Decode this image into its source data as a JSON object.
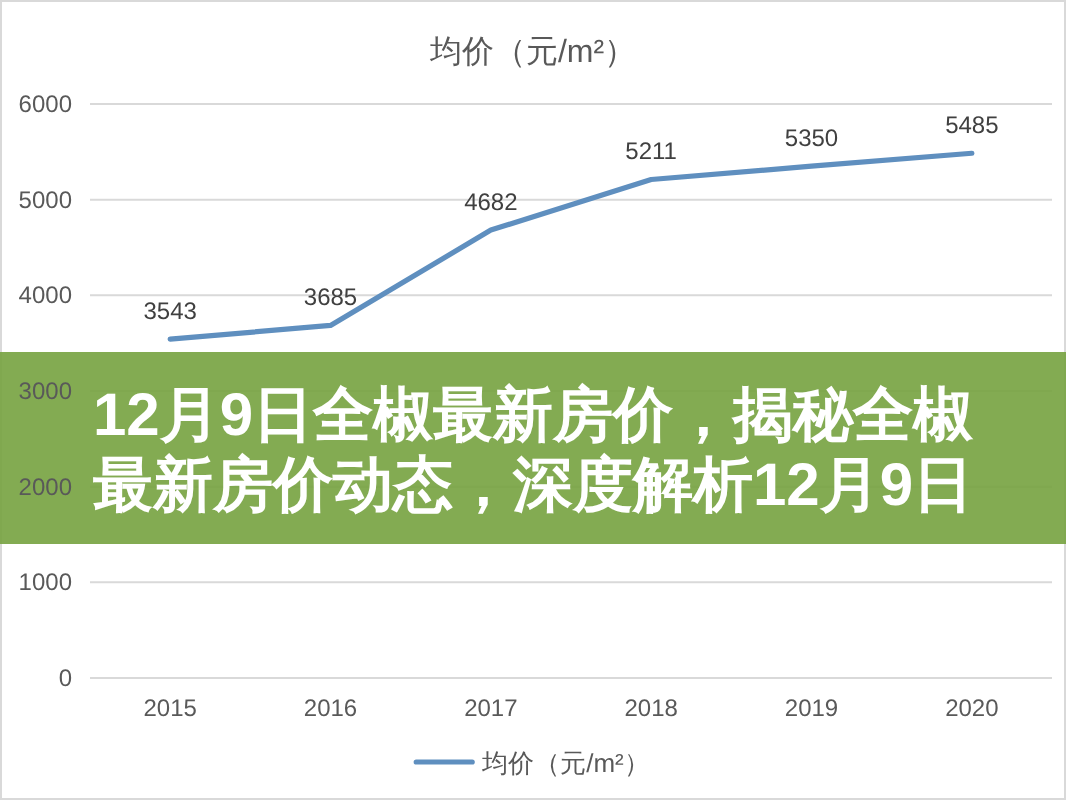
{
  "chart_data": {
    "type": "line",
    "title": "均价（元/m²）",
    "categories": [
      "2015",
      "2016",
      "2017",
      "2018",
      "2019",
      "2020"
    ],
    "series": [
      {
        "name": "均价（元/m²）",
        "color": "#5f8fbf",
        "values": [
          3543,
          3685,
          4682,
          5211,
          5350,
          5485
        ]
      }
    ],
    "ylim": [
      0,
      6000
    ],
    "yticks": [
      0,
      1000,
      2000,
      3000,
      4000,
      5000,
      6000
    ],
    "grid": "y",
    "legend": "bottom",
    "data_labels": true,
    "annotations": [
      "12月9日全椒最新房价，揭秘全椒最新房价动态，深度解析12月9日"
    ]
  }
}
